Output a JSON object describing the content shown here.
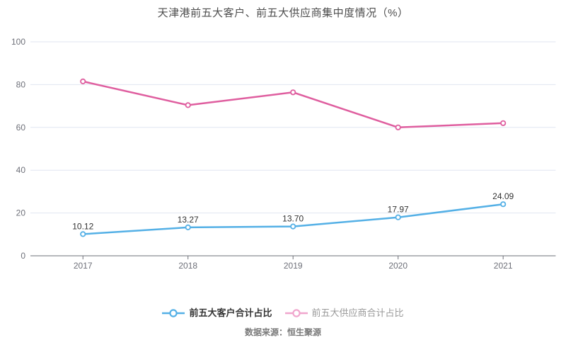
{
  "source": "数据来源：恒生聚源",
  "chart_data": {
    "type": "line",
    "title": "天津港前五大客户、前五大供应商集中度情况（%）",
    "categories": [
      "2017",
      "2018",
      "2019",
      "2020",
      "2021"
    ],
    "series": [
      {
        "name": "前五大客户合计占比",
        "color": "#54b0e6",
        "values": [
          10.12,
          13.27,
          13.7,
          17.97,
          24.09
        ],
        "value_labels": [
          "10.12",
          "13.27",
          "13.70",
          "17.97",
          "24.09"
        ],
        "show_labels": true,
        "legend_marker_color": "#54b0e6",
        "legend_text_color": "#333333",
        "legend_bold": true
      },
      {
        "name": "前五大供应商合计占比",
        "color": "#df5e9f",
        "values": [
          81.5,
          70.4,
          76.4,
          60.0,
          62.0
        ],
        "value_labels": [],
        "show_labels": false,
        "legend_marker_color": "#f0a6cd",
        "legend_text_color": "#999999",
        "legend_bold": false
      }
    ],
    "ylim": [
      0,
      100
    ],
    "yticks": [
      0,
      20,
      40,
      60,
      80,
      100
    ],
    "grid": true,
    "legend_position": "bottom",
    "grid_color": "#e0e6f1",
    "axis_color": "#6e7079",
    "axis_label_color": "#6e7079",
    "data_label_color": "#333333"
  }
}
